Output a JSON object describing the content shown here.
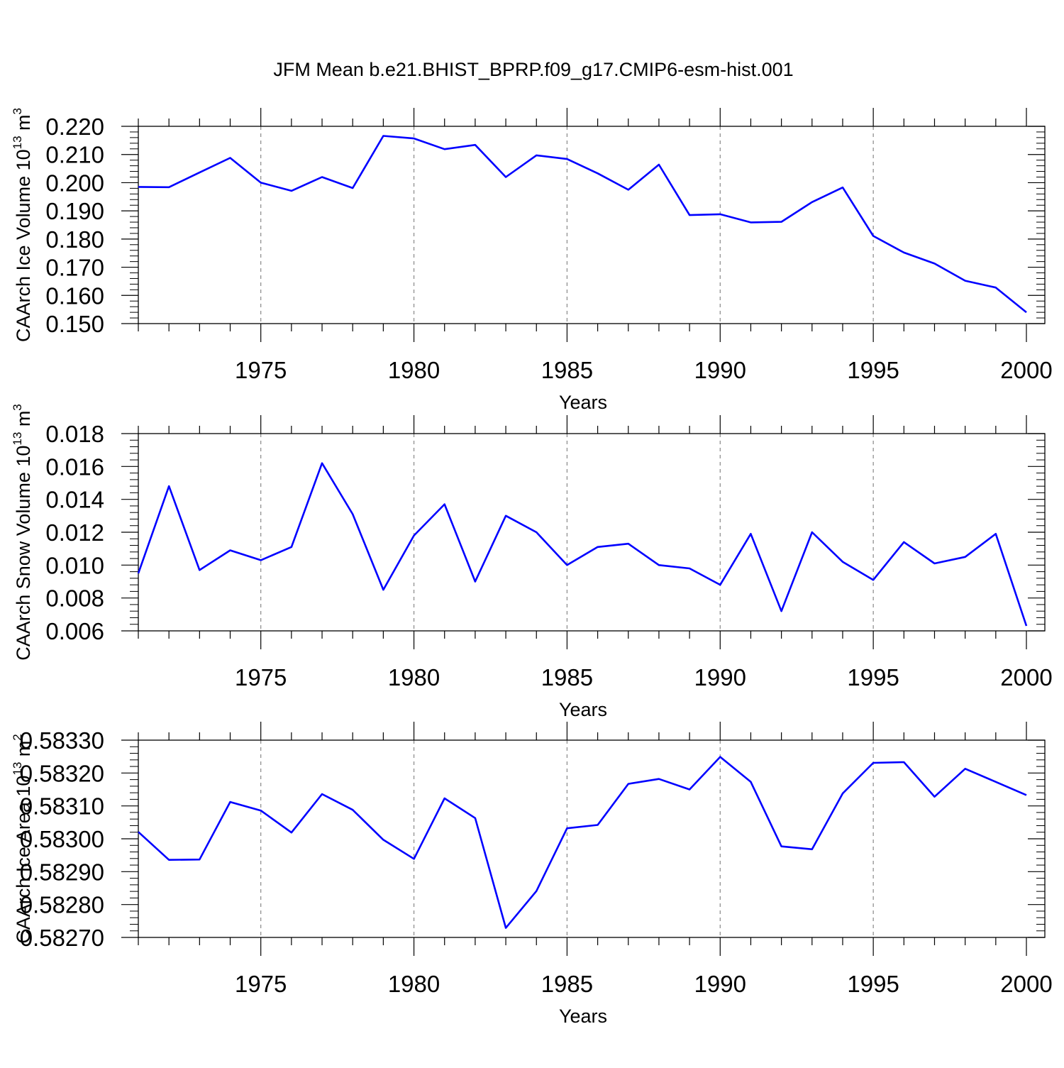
{
  "title": "JFM Mean b.e21.BHIST_BPRP.f09_g17.CMIP6-esm-hist.001",
  "line_color": "#0000ff",
  "chart_data": [
    {
      "type": "line",
      "ylabel": {
        "main": "CAArch Ice Volume 10",
        "sup": "13",
        "unit": " m",
        "unit_sup": "3"
      },
      "xlabel": "Years",
      "xlim": [
        1971,
        2000
      ],
      "ylim": [
        0.15,
        0.22
      ],
      "xticks": [
        "1975",
        "1980",
        "1985",
        "1990",
        "1995",
        "2000"
      ],
      "yticks": [
        "0.150",
        "0.160",
        "0.170",
        "0.180",
        "0.190",
        "0.200",
        "0.210",
        "0.220"
      ],
      "grid": "vertical dashed",
      "x": [
        1971,
        1972,
        1973,
        1974,
        1975,
        1976,
        1977,
        1978,
        1979,
        1980,
        1981,
        1982,
        1983,
        1984,
        1985,
        1986,
        1987,
        1988,
        1989,
        1990,
        1991,
        1992,
        1993,
        1994,
        1995,
        1996,
        1997,
        1998,
        1999,
        2000
      ],
      "values": [
        0.1985,
        0.1984,
        0.2036,
        0.2088,
        0.2,
        0.1971,
        0.202,
        0.1981,
        0.2166,
        0.2157,
        0.2119,
        0.2134,
        0.202,
        0.2097,
        0.2084,
        0.2033,
        0.1975,
        0.2064,
        0.1885,
        0.1888,
        0.1859,
        0.1861,
        0.1931,
        0.1983,
        0.1811,
        0.1752,
        0.1713,
        0.1652,
        0.1628,
        0.154
      ]
    },
    {
      "type": "line",
      "ylabel": {
        "main": "CAArch Snow Volume 10",
        "sup": "13",
        "unit": " m",
        "unit_sup": "3"
      },
      "xlabel": "Years",
      "xlim": [
        1971,
        2000
      ],
      "ylim": [
        0.006,
        0.018
      ],
      "xticks": [
        "1975",
        "1980",
        "1985",
        "1990",
        "1995",
        "2000"
      ],
      "yticks": [
        "0.006",
        "0.008",
        "0.010",
        "0.012",
        "0.014",
        "0.016",
        "0.018"
      ],
      "grid": "vertical dashed",
      "x": [
        1971,
        1972,
        1973,
        1974,
        1975,
        1976,
        1977,
        1978,
        1979,
        1980,
        1981,
        1982,
        1983,
        1984,
        1985,
        1986,
        1987,
        1988,
        1989,
        1990,
        1991,
        1992,
        1993,
        1994,
        1995,
        1996,
        1997,
        1998,
        1999,
        2000
      ],
      "values": [
        0.0095,
        0.0148,
        0.0097,
        0.0109,
        0.0103,
        0.0111,
        0.0162,
        0.0131,
        0.0085,
        0.0118,
        0.0137,
        0.009,
        0.013,
        0.012,
        0.01,
        0.0111,
        0.0113,
        0.01,
        0.0098,
        0.0088,
        0.0119,
        0.0072,
        0.012,
        0.0102,
        0.0091,
        0.0114,
        0.0101,
        0.0105,
        0.0119,
        0.0063
      ]
    },
    {
      "type": "line",
      "ylabel": {
        "main": "CAArch Ice Area 10",
        "sup": "13",
        "unit": " m",
        "unit_sup": "2"
      },
      "xlabel": "Years",
      "xlim": [
        1971,
        2000
      ],
      "ylim": [
        0.5827,
        0.5833
      ],
      "xticks": [
        "1975",
        "1980",
        "1985",
        "1990",
        "1995",
        "2000"
      ],
      "yticks": [
        "0.58270",
        "0.58280",
        "0.58290",
        "0.58300",
        "0.58310",
        "0.58320",
        "0.58330"
      ],
      "grid": "vertical dashed",
      "x": [
        1971,
        1972,
        1973,
        1974,
        1975,
        1976,
        1977,
        1978,
        1979,
        1980,
        1981,
        1982,
        1983,
        1984,
        1985,
        1986,
        1987,
        1988,
        1989,
        1990,
        1991,
        1992,
        1993,
        1994,
        1995,
        1996,
        1997,
        1998,
        1999,
        2000
      ],
      "values": [
        0.583021,
        0.582936,
        0.582937,
        0.583112,
        0.583086,
        0.583019,
        0.583136,
        0.583088,
        0.582997,
        0.582939,
        0.583123,
        0.583063,
        0.582729,
        0.582841,
        0.583032,
        0.583042,
        0.583167,
        0.583182,
        0.58315,
        0.583249,
        0.583173,
        0.582977,
        0.582968,
        0.583138,
        0.583231,
        0.583233,
        0.583128,
        0.583213,
        0.583173,
        0.583133
      ]
    }
  ]
}
